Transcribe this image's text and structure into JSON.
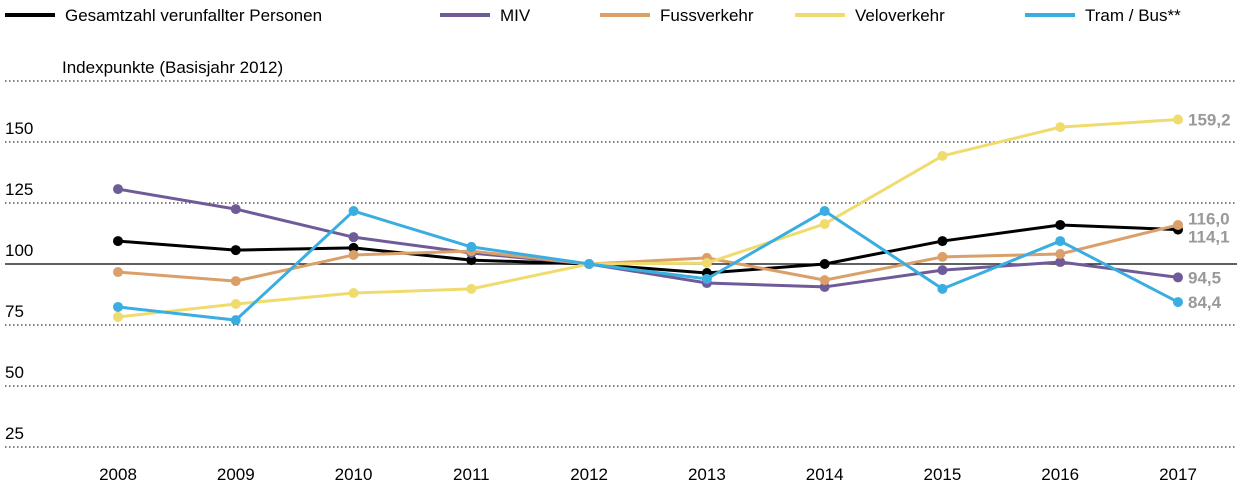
{
  "chart_data": {
    "type": "line",
    "y_axis_label": "Indexpunkte (Basisjahr 2012)",
    "categories": [
      "2008",
      "2009",
      "2010",
      "2011",
      "2012",
      "2013",
      "2014",
      "2015",
      "2016",
      "2017"
    ],
    "series": [
      {
        "name": "Gesamtzahl verunfallter Personen",
        "color": "#000000",
        "values": [
          109.4,
          105.7,
          106.6,
          101.6,
          100,
          96.3,
          100,
          109.4,
          116,
          114.1
        ],
        "value_labels": [
          null,
          null,
          null,
          null,
          null,
          null,
          null,
          null,
          null,
          "114,1"
        ]
      },
      {
        "name": "MIV",
        "color": "#6f5b97",
        "values": [
          130.7,
          122.5,
          111,
          104.5,
          100,
          92.2,
          90.6,
          97.5,
          100.8,
          94.5
        ],
        "value_labels": [
          null,
          null,
          null,
          null,
          null,
          null,
          null,
          null,
          null,
          "94,5"
        ]
      },
      {
        "name": "Fussverkehr",
        "color": "#dba06a",
        "values": [
          96.7,
          93,
          103.7,
          105.3,
          100,
          102.5,
          93.4,
          102.9,
          104.1,
          116.0
        ],
        "value_labels": [
          null,
          null,
          null,
          null,
          null,
          null,
          null,
          null,
          null,
          "116,0"
        ]
      },
      {
        "name": "Veloverkehr",
        "color": "#f0dc6e",
        "values": [
          78.3,
          83.6,
          88.1,
          89.8,
          100,
          100.4,
          116.4,
          144.3,
          156.1,
          159.2
        ],
        "value_labels": [
          null,
          null,
          null,
          null,
          null,
          null,
          null,
          null,
          null,
          "159,2"
        ]
      },
      {
        "name": "Tram / Bus**",
        "color": "#3aaee0",
        "values": [
          82.4,
          77,
          121.7,
          107,
          100,
          93.9,
          121.7,
          89.8,
          109.4,
          84.4
        ],
        "value_labels": [
          null,
          null,
          null,
          null,
          null,
          null,
          null,
          null,
          null,
          "84,4"
        ]
      }
    ],
    "ylim": [
      25,
      175
    ],
    "yticks": [
      25,
      50,
      75,
      100,
      125,
      150
    ],
    "baseline": 100,
    "grid": true
  }
}
